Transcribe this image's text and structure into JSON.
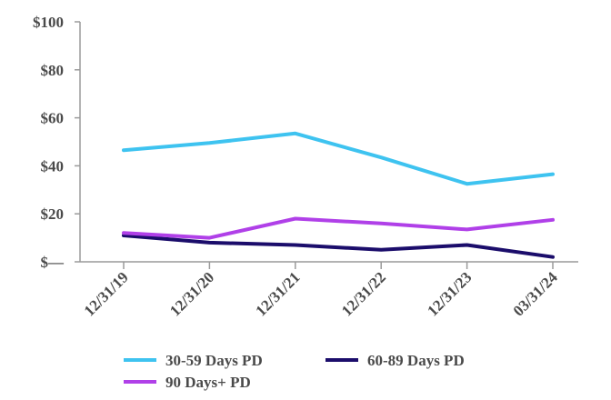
{
  "chart_data": {
    "type": "line",
    "title": "",
    "xlabel": "",
    "ylabel": "",
    "categories": [
      "12/31/19",
      "12/31/20",
      "12/31/21",
      "12/31/22",
      "12/31/23",
      "03/31/24"
    ],
    "y_ticks": [
      {
        "value": 0,
        "label": "$—"
      },
      {
        "value": 20,
        "label": "$20"
      },
      {
        "value": 40,
        "label": "$40"
      },
      {
        "value": 60,
        "label": "$60"
      },
      {
        "value": 80,
        "label": "$80"
      },
      {
        "value": 100,
        "label": "$100"
      }
    ],
    "ylim": [
      0,
      100
    ],
    "grid": false,
    "legend_position": "bottom",
    "series": [
      {
        "name": "30-59 Days PD",
        "color": "#3ec3f0",
        "values": [
          46.5,
          49.5,
          53.5,
          43.5,
          32.5,
          36.5
        ]
      },
      {
        "name": "60-89 Days PD",
        "color": "#1b0d6b",
        "values": [
          11,
          8,
          7,
          5,
          7,
          2
        ]
      },
      {
        "name": "90 Days+ PD",
        "color": "#b040e8",
        "values": [
          12,
          10,
          18,
          16,
          13.5,
          17.5
        ]
      }
    ]
  }
}
